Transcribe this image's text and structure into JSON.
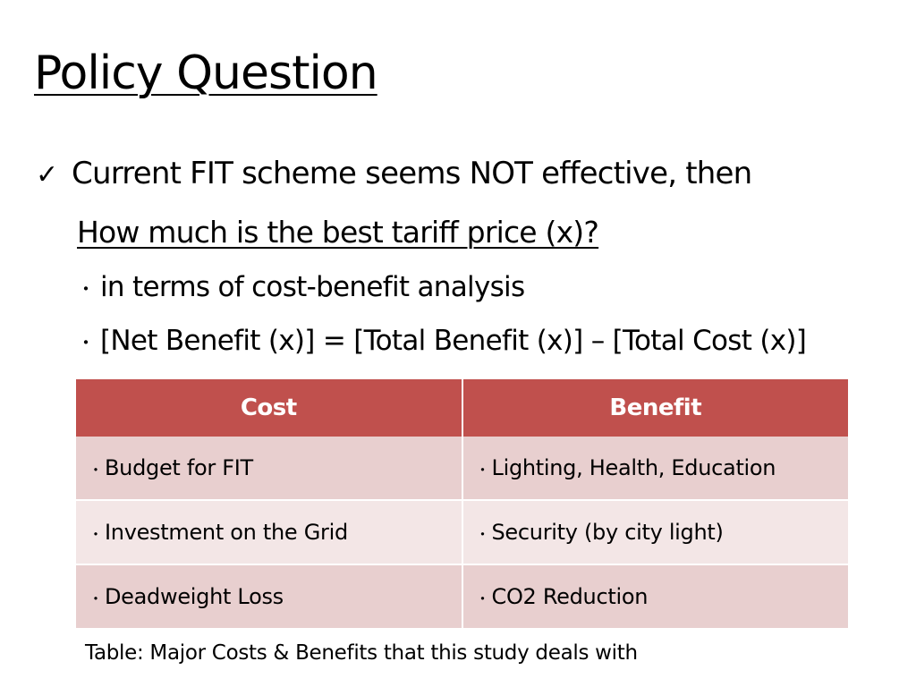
{
  "slide": {
    "title": "Policy Question",
    "main_bullet": "Current FIT scheme seems NOT effective, then",
    "question": "How much is the best tariff price (x)?",
    "sub_bullets": [
      "in terms of cost-benefit analysis",
      "[Net Benefit (x)] = [Total Benefit (x)] – [Total Cost (x)]"
    ],
    "bullet_symbol": "・",
    "check_symbol": "✓"
  },
  "table": {
    "headers": [
      "Cost",
      "Benefit"
    ],
    "rows": [
      {
        "cost": "Budget for FIT",
        "benefit": "Lighting, Health, Education"
      },
      {
        "cost": "Investment on the Grid",
        "benefit": "Security (by city light)"
      },
      {
        "cost": "Deadweight Loss",
        "benefit": "CO2 Reduction"
      }
    ],
    "header_color": "#c0504d",
    "row_color_dark": "#e8cfcf",
    "row_color_light": "#f3e6e6"
  },
  "caption": "Table: Major Costs & Benefits that this study deals with"
}
